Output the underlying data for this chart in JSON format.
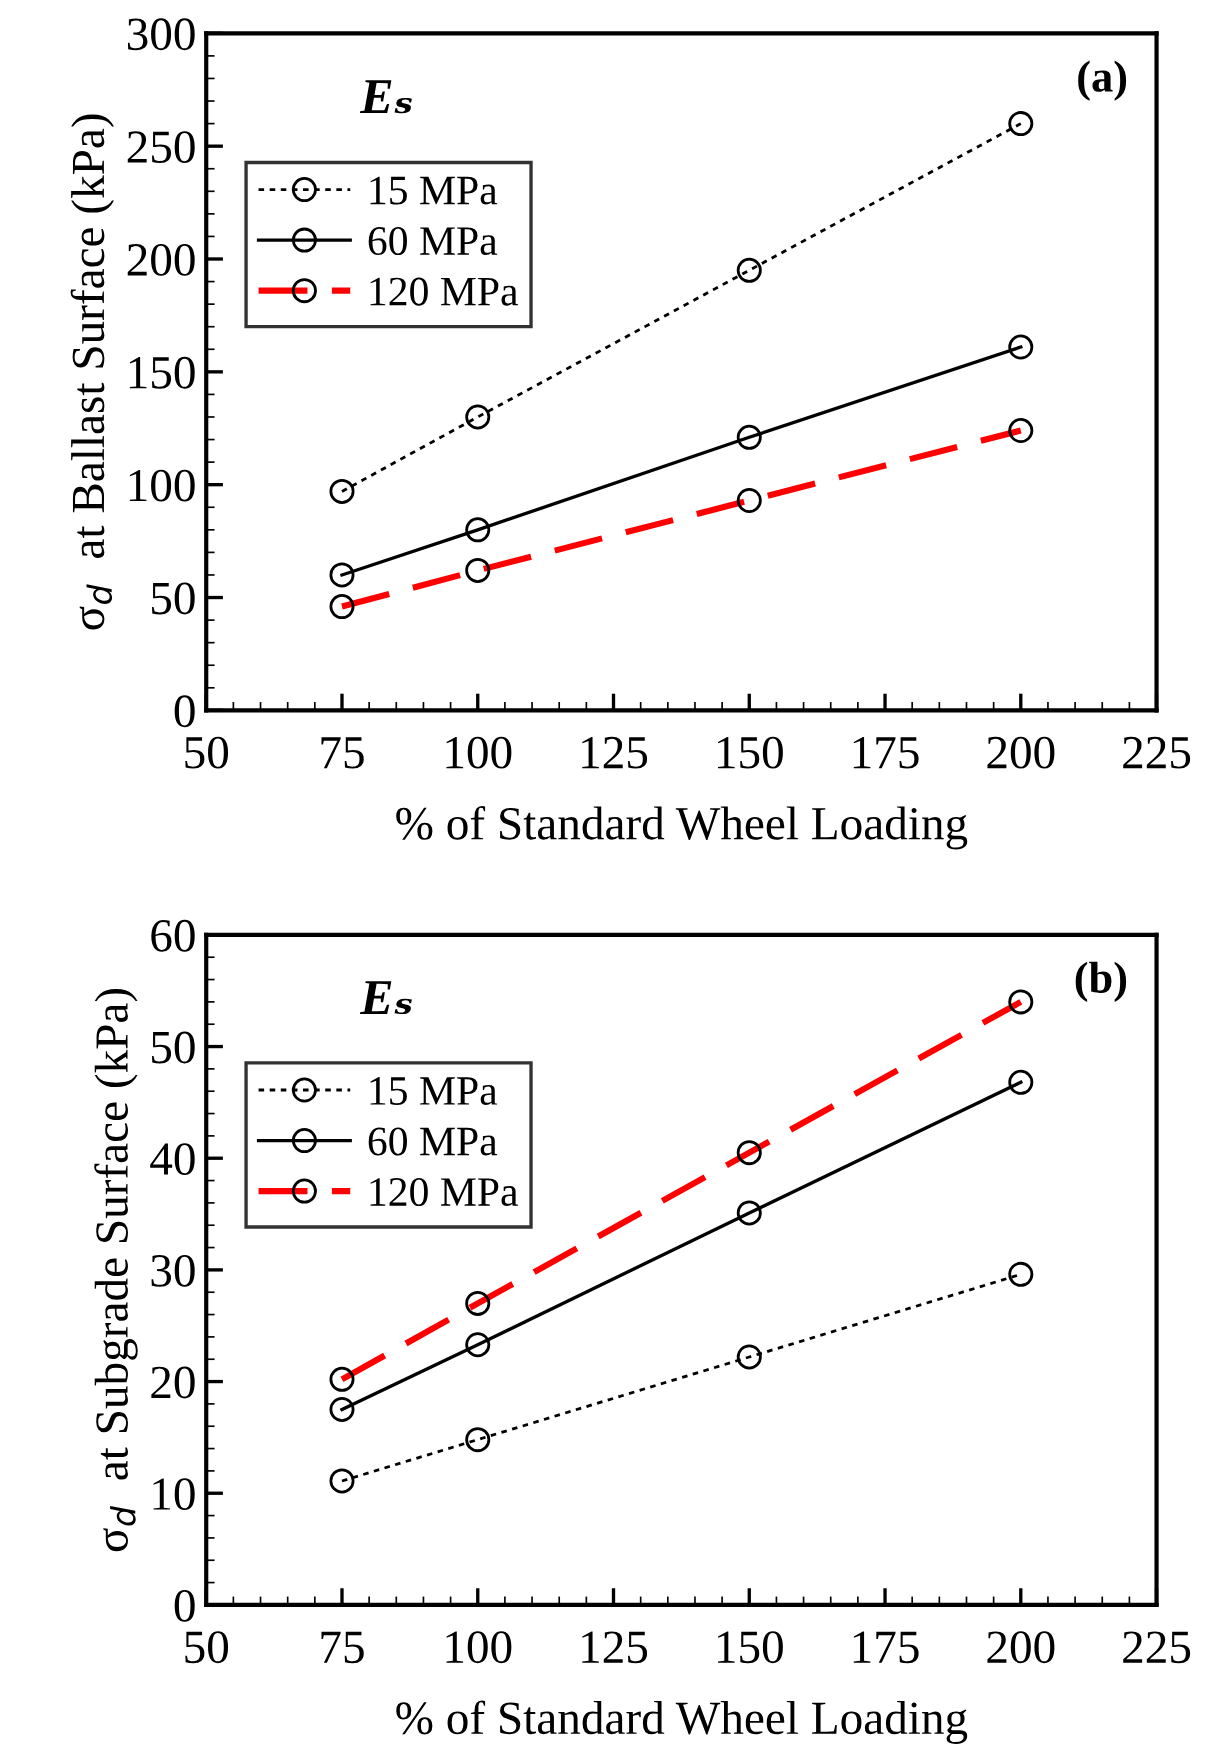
{
  "chart_data": [
    {
      "type": "line",
      "xlabel": "% of Standard Wheel Loading",
      "ylabel": "σ$_{d}$  at Ballast Surface (kPa)",
      "legend_title": "Eₛ",
      "annotations": [
        "(a)"
      ],
      "x": [
        75,
        100,
        150,
        200
      ],
      "xlim": [
        50,
        225
      ],
      "xticks": [
        50,
        75,
        100,
        125,
        150,
        175,
        200,
        225
      ],
      "ylim": [
        0,
        300
      ],
      "yticks": [
        0,
        50,
        100,
        150,
        200,
        250,
        300
      ],
      "marker": "circle",
      "grid": false,
      "legend": "top left",
      "series": [
        {
          "name": "15 MPa",
          "color": "#000000",
          "line_style": "dotted",
          "values": [
            97,
            130,
            195,
            260
          ]
        },
        {
          "name": "60 MPa",
          "color": "#000000",
          "line_style": "solid",
          "values": [
            60,
            80,
            121,
            161
          ]
        },
        {
          "name": "120 MPa",
          "color": "#ff0000",
          "line_style": "dashed",
          "values": [
            46,
            62,
            93,
            124
          ]
        }
      ]
    },
    {
      "type": "line",
      "xlabel": "% of Standard Wheel Loading",
      "ylabel": "σ$_{d}$  at Subgrade Surface (kPa)",
      "legend_title": "Eₛ",
      "annotations": [
        "(b)"
      ],
      "x": [
        75,
        100,
        150,
        200
      ],
      "xlim": [
        50,
        225
      ],
      "xticks": [
        50,
        75,
        100,
        125,
        150,
        175,
        200,
        225
      ],
      "ylim": [
        0,
        60
      ],
      "yticks": [
        0,
        10,
        20,
        30,
        40,
        50,
        60
      ],
      "marker": "circle",
      "grid": false,
      "legend": "top left",
      "series": [
        {
          "name": "15 MPa",
          "color": "#000000",
          "line_style": "dotted",
          "values": [
            11.1,
            14.8,
            22.2,
            29.6
          ]
        },
        {
          "name": "60 MPa",
          "color": "#000000",
          "line_style": "solid",
          "values": [
            17.5,
            23.3,
            35.1,
            46.8
          ]
        },
        {
          "name": "120 MPa",
          "color": "#ff0000",
          "line_style": "dashed",
          "values": [
            20.2,
            27,
            40.5,
            54
          ]
        }
      ]
    }
  ]
}
